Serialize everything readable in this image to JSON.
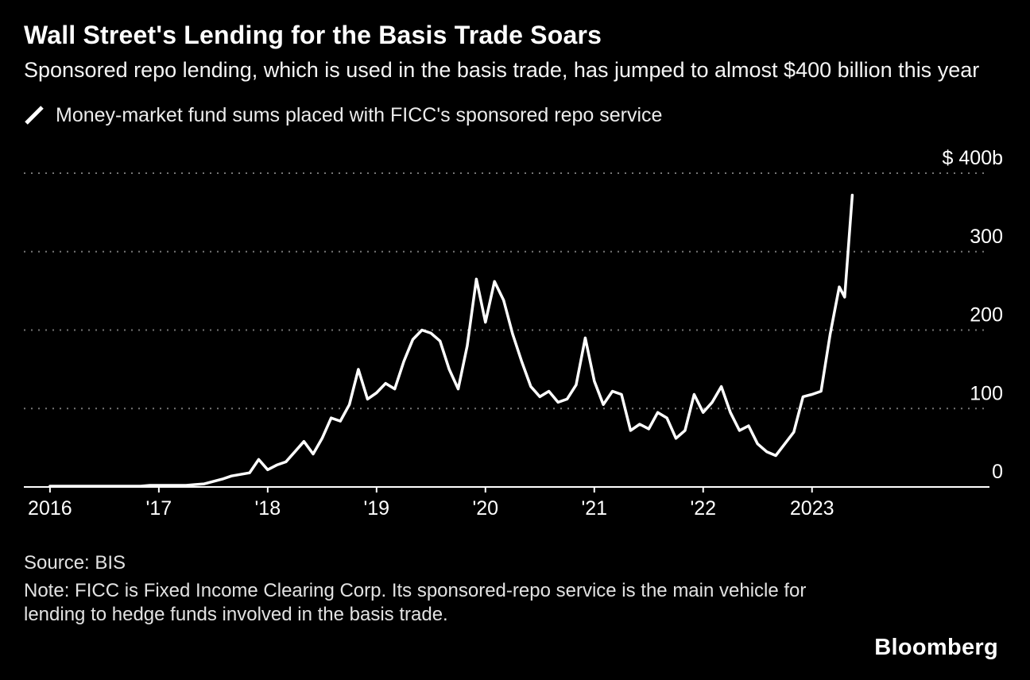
{
  "header": {
    "title": "Wall Street's Lending for the Basis Trade Soars",
    "subtitle": "Sponsored repo lending, which is used in the basis trade, has jumped to almost $400 billion this year"
  },
  "legend": {
    "label": "Money-market fund sums placed with FICC's sponsored repo service"
  },
  "footer": {
    "source": "Source: BIS",
    "note": "Note: FICC is Fixed Income Clearing Corp. Its sponsored-repo service is the main vehicle for lending to hedge funds involved in the basis trade.",
    "logo": "Bloomberg"
  },
  "colors": {
    "background": "#000000",
    "text": "#ffffff",
    "muted_text": "#e2e2e2",
    "grid": "#757575",
    "line": "#ffffff"
  },
  "chart_data": {
    "type": "line",
    "title": "Wall Street's Lending for the Basis Trade Soars",
    "subtitle": "Sponsored repo lending, which is used in the basis trade, has jumped to almost $400 billion this year",
    "unit": "billions of US dollars",
    "grid": "dashed-horizontal",
    "legend_position": "top-left",
    "xlim": [
      2015.76,
      2024.63
    ],
    "ylim": [
      0,
      400
    ],
    "y_ticks": [
      {
        "value": 400,
        "label": "$ 400b"
      },
      {
        "value": 300,
        "label": "300"
      },
      {
        "value": 200,
        "label": "200"
      },
      {
        "value": 100,
        "label": "100"
      },
      {
        "value": 0,
        "label": "0"
      }
    ],
    "x_ticks": [
      {
        "value": 2016,
        "label": "2016"
      },
      {
        "value": 2017,
        "label": "'17"
      },
      {
        "value": 2018,
        "label": "'18"
      },
      {
        "value": 2019,
        "label": "'19"
      },
      {
        "value": 2020,
        "label": "'20"
      },
      {
        "value": 2021,
        "label": "'21"
      },
      {
        "value": 2022,
        "label": "'22"
      },
      {
        "value": 2023,
        "label": "2023"
      }
    ],
    "series": [
      {
        "name": "Money-market fund sums placed with FICC's sponsored repo service",
        "points": [
          [
            2016.0,
            1
          ],
          [
            2016.083,
            1
          ],
          [
            2016.167,
            1
          ],
          [
            2016.25,
            1
          ],
          [
            2016.333,
            1
          ],
          [
            2016.417,
            1
          ],
          [
            2016.5,
            1
          ],
          [
            2016.583,
            1
          ],
          [
            2016.667,
            1
          ],
          [
            2016.75,
            1
          ],
          [
            2016.833,
            1
          ],
          [
            2016.917,
            2
          ],
          [
            2017.0,
            2
          ],
          [
            2017.083,
            2
          ],
          [
            2017.167,
            2
          ],
          [
            2017.25,
            2
          ],
          [
            2017.333,
            3
          ],
          [
            2017.417,
            4
          ],
          [
            2017.5,
            7
          ],
          [
            2017.583,
            10
          ],
          [
            2017.667,
            14
          ],
          [
            2017.75,
            16
          ],
          [
            2017.833,
            18
          ],
          [
            2017.917,
            35
          ],
          [
            2018.0,
            22
          ],
          [
            2018.083,
            28
          ],
          [
            2018.167,
            32
          ],
          [
            2018.25,
            45
          ],
          [
            2018.333,
            58
          ],
          [
            2018.417,
            42
          ],
          [
            2018.5,
            62
          ],
          [
            2018.583,
            88
          ],
          [
            2018.667,
            84
          ],
          [
            2018.75,
            105
          ],
          [
            2018.833,
            150
          ],
          [
            2018.917,
            112
          ],
          [
            2019.0,
            120
          ],
          [
            2019.083,
            132
          ],
          [
            2019.167,
            125
          ],
          [
            2019.25,
            160
          ],
          [
            2019.333,
            188
          ],
          [
            2019.417,
            200
          ],
          [
            2019.5,
            196
          ],
          [
            2019.583,
            186
          ],
          [
            2019.667,
            150
          ],
          [
            2019.75,
            125
          ],
          [
            2019.833,
            180
          ],
          [
            2019.917,
            265
          ],
          [
            2020.0,
            210
          ],
          [
            2020.083,
            262
          ],
          [
            2020.167,
            238
          ],
          [
            2020.25,
            195
          ],
          [
            2020.333,
            160
          ],
          [
            2020.417,
            128
          ],
          [
            2020.5,
            115
          ],
          [
            2020.583,
            122
          ],
          [
            2020.667,
            108
          ],
          [
            2020.75,
            112
          ],
          [
            2020.833,
            130
          ],
          [
            2020.917,
            190
          ],
          [
            2021.0,
            135
          ],
          [
            2021.083,
            105
          ],
          [
            2021.167,
            122
          ],
          [
            2021.25,
            118
          ],
          [
            2021.333,
            72
          ],
          [
            2021.417,
            80
          ],
          [
            2021.5,
            74
          ],
          [
            2021.583,
            95
          ],
          [
            2021.667,
            88
          ],
          [
            2021.75,
            62
          ],
          [
            2021.833,
            72
          ],
          [
            2021.917,
            118
          ],
          [
            2022.0,
            95
          ],
          [
            2022.083,
            108
          ],
          [
            2022.167,
            128
          ],
          [
            2022.25,
            95
          ],
          [
            2022.333,
            72
          ],
          [
            2022.417,
            78
          ],
          [
            2022.5,
            55
          ],
          [
            2022.583,
            45
          ],
          [
            2022.667,
            40
          ],
          [
            2022.75,
            55
          ],
          [
            2022.833,
            70
          ],
          [
            2022.917,
            115
          ],
          [
            2023.0,
            118
          ],
          [
            2023.083,
            122
          ],
          [
            2023.167,
            195
          ],
          [
            2023.25,
            255
          ],
          [
            2023.3,
            242
          ],
          [
            2023.37,
            372
          ]
        ]
      }
    ]
  }
}
